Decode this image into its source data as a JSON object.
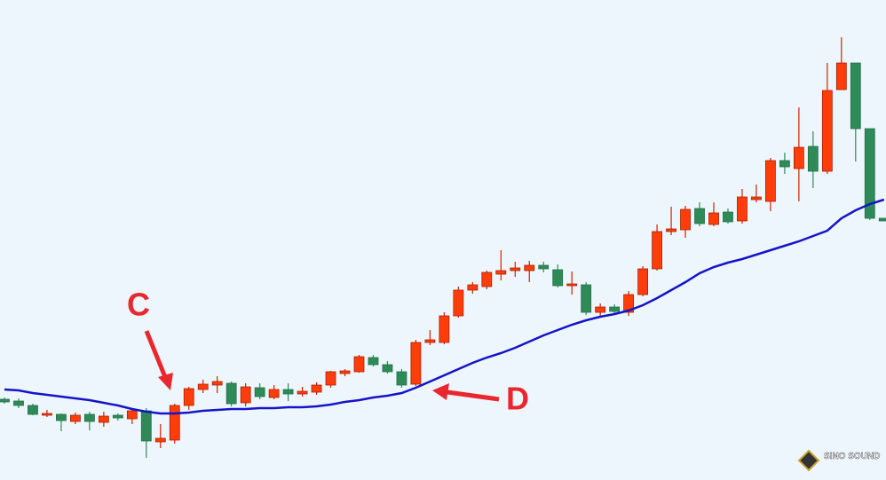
{
  "chart_data": {
    "type": "candlestick",
    "open": [
      91,
      89,
      84,
      73,
      74,
      66,
      74,
      65,
      73,
      69,
      78,
      43,
      45,
      84,
      102,
      107,
      109,
      87,
      104,
      93,
      102,
      97,
      99,
      107,
      120,
      122,
      138,
      130,
      122,
      108,
      155,
      155,
      185,
      214,
      218,
      232,
      236,
      236,
      242,
      237,
      219,
      220,
      189,
      195,
      189,
      209,
      238,
      280,
      282,
      306,
      288,
      302,
      292,
      316,
      314,
      360,
      351,
      376,
      348,
      440,
      470,
      396,
      295
    ],
    "high": [
      93,
      92,
      86,
      79,
      75,
      76,
      77,
      77,
      75,
      81,
      81,
      63,
      86,
      105,
      113,
      117,
      111,
      109,
      109,
      107,
      109,
      105,
      110,
      123,
      125,
      141,
      141,
      134,
      125,
      158,
      169,
      189,
      218,
      223,
      236,
      259,
      246,
      247,
      246,
      243,
      235,
      223,
      199,
      198,
      213,
      241,
      288,
      308,
      309,
      313,
      313,
      306,
      328,
      333,
      363,
      369,
      420,
      393,
      470,
      499,
      470,
      396,
      295
    ],
    "low": [
      86,
      81,
      73,
      71,
      55,
      63,
      56,
      60,
      67,
      63,
      25,
      36,
      41,
      79,
      98,
      98,
      83,
      83,
      91,
      91,
      89,
      94,
      96,
      104,
      117,
      121,
      128,
      120,
      104,
      106,
      152,
      153,
      183,
      210,
      215,
      225,
      229,
      223,
      234,
      217,
      209,
      186,
      183,
      187,
      185,
      207,
      236,
      276,
      273,
      286,
      286,
      289,
      289,
      313,
      303,
      345,
      314,
      329,
      345,
      440,
      359,
      293,
      292
    ],
    "close": [
      88,
      84,
      74,
      75,
      67,
      73,
      66,
      72,
      70,
      78,
      44,
      47,
      84,
      103,
      108,
      111,
      86,
      105,
      94,
      102,
      97,
      100,
      107,
      122,
      123,
      139,
      130,
      122,
      107,
      155,
      158,
      185,
      214,
      220,
      234,
      236,
      239,
      242,
      238,
      219,
      221,
      189,
      195,
      190,
      209,
      238,
      280,
      283,
      305,
      289,
      301,
      291,
      319,
      319,
      360,
      353,
      375,
      348,
      439,
      470,
      396,
      295,
      292
    ],
    "ma": [
      102,
      101,
      98,
      96,
      94,
      92,
      90,
      87,
      84,
      80,
      77,
      75,
      75,
      76,
      78,
      79,
      80,
      80,
      81,
      81,
      82,
      82,
      83,
      85,
      88,
      90,
      93,
      95,
      98,
      104,
      111,
      118,
      125,
      132,
      138,
      143,
      149,
      156,
      163,
      169,
      175,
      180,
      184,
      187,
      191,
      197,
      205,
      214,
      223,
      233,
      240,
      245,
      249,
      254,
      259,
      264,
      269,
      275,
      281,
      295,
      304,
      311,
      316
    ],
    "up_color": "#ff3d0a",
    "down_color": "#2e8b57",
    "ma_color": "#1414c8",
    "ylim": [
      0,
      541
    ],
    "annotations": [
      "C",
      "D"
    ],
    "watermark": "SINO SOUND"
  }
}
